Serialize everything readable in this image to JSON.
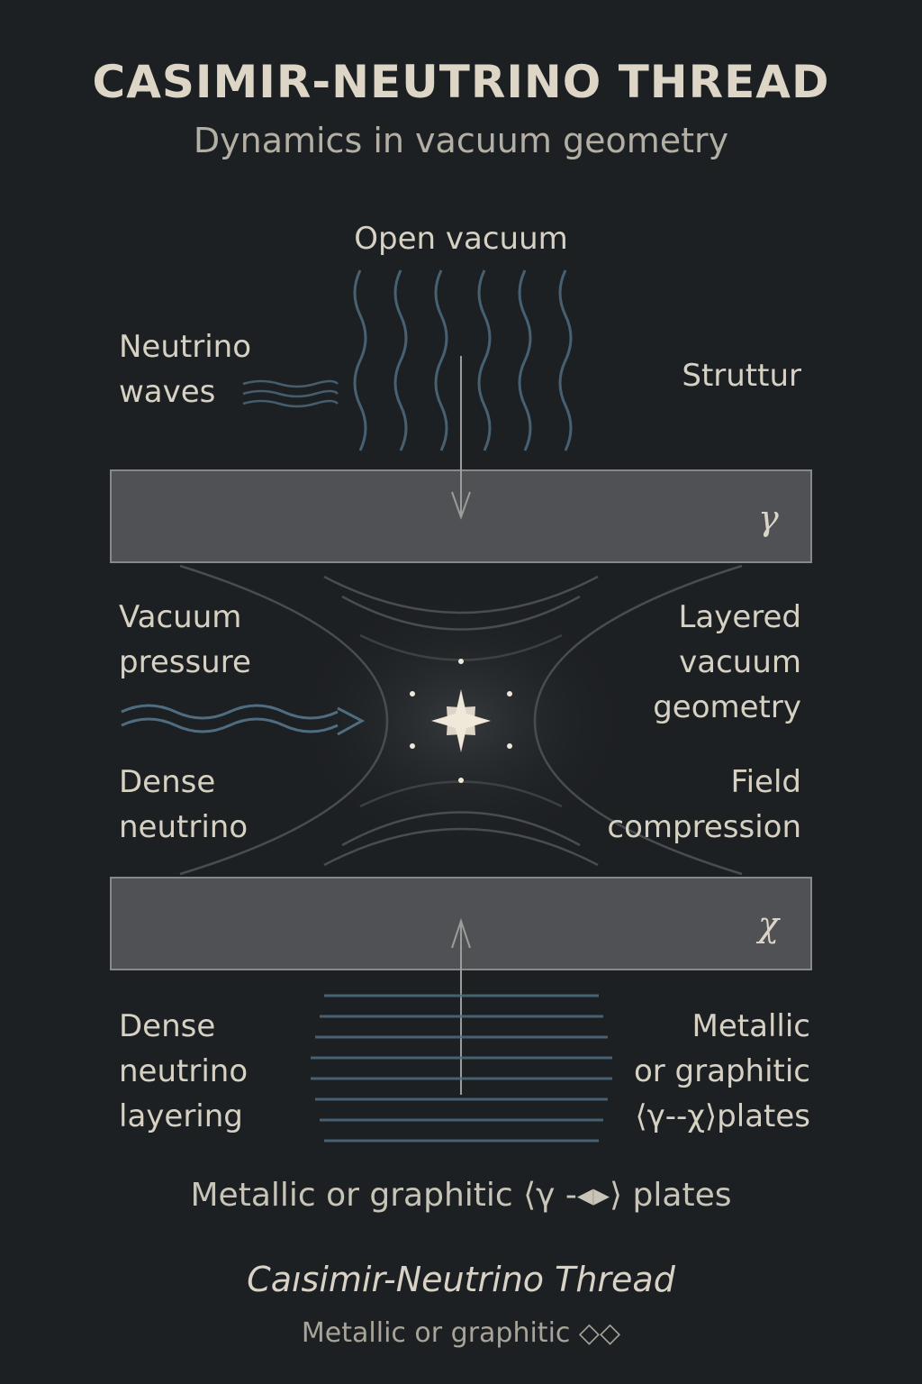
{
  "header": {
    "title": "CASIMIR-NEUTRINO THREAD",
    "subtitle": "Dynamics in vacuum geometry"
  },
  "labels": {
    "open_vacuum": "Open vacuum",
    "neutrino_waves": "Neutrino\nwaves",
    "struttur": "Struttur",
    "vacuum_pressure": "Vacuum\npressure",
    "layered_vacuum_geometry": "Layered\nvacuum\ngeometry",
    "dense_neutrino": "Dense\nneutrino",
    "field_compression": "Field\ncompression",
    "dense_neutrino_layering": "Dense\nneutrino\nlayering",
    "metallic_plates_right": "Metallic\nor graphitic\n⟨γ--χ⟩plates"
  },
  "plates": {
    "top_symbol": "γ",
    "bottom_symbol": "χ"
  },
  "footer": {
    "caption_1": "Metallic or graphitic ⟨γ -◂▸⟩ plates",
    "caption_2": "Caısimir-Neutrino Thread",
    "caption_3": "Metallic or graphitic ◇◇"
  },
  "colors": {
    "background": "#1d2023",
    "plate_fill": "#4f5154",
    "plate_border": "#86888a",
    "wave_blue": "#4f6d80",
    "text": "#d6d1c3",
    "star": "#efe8d8"
  }
}
